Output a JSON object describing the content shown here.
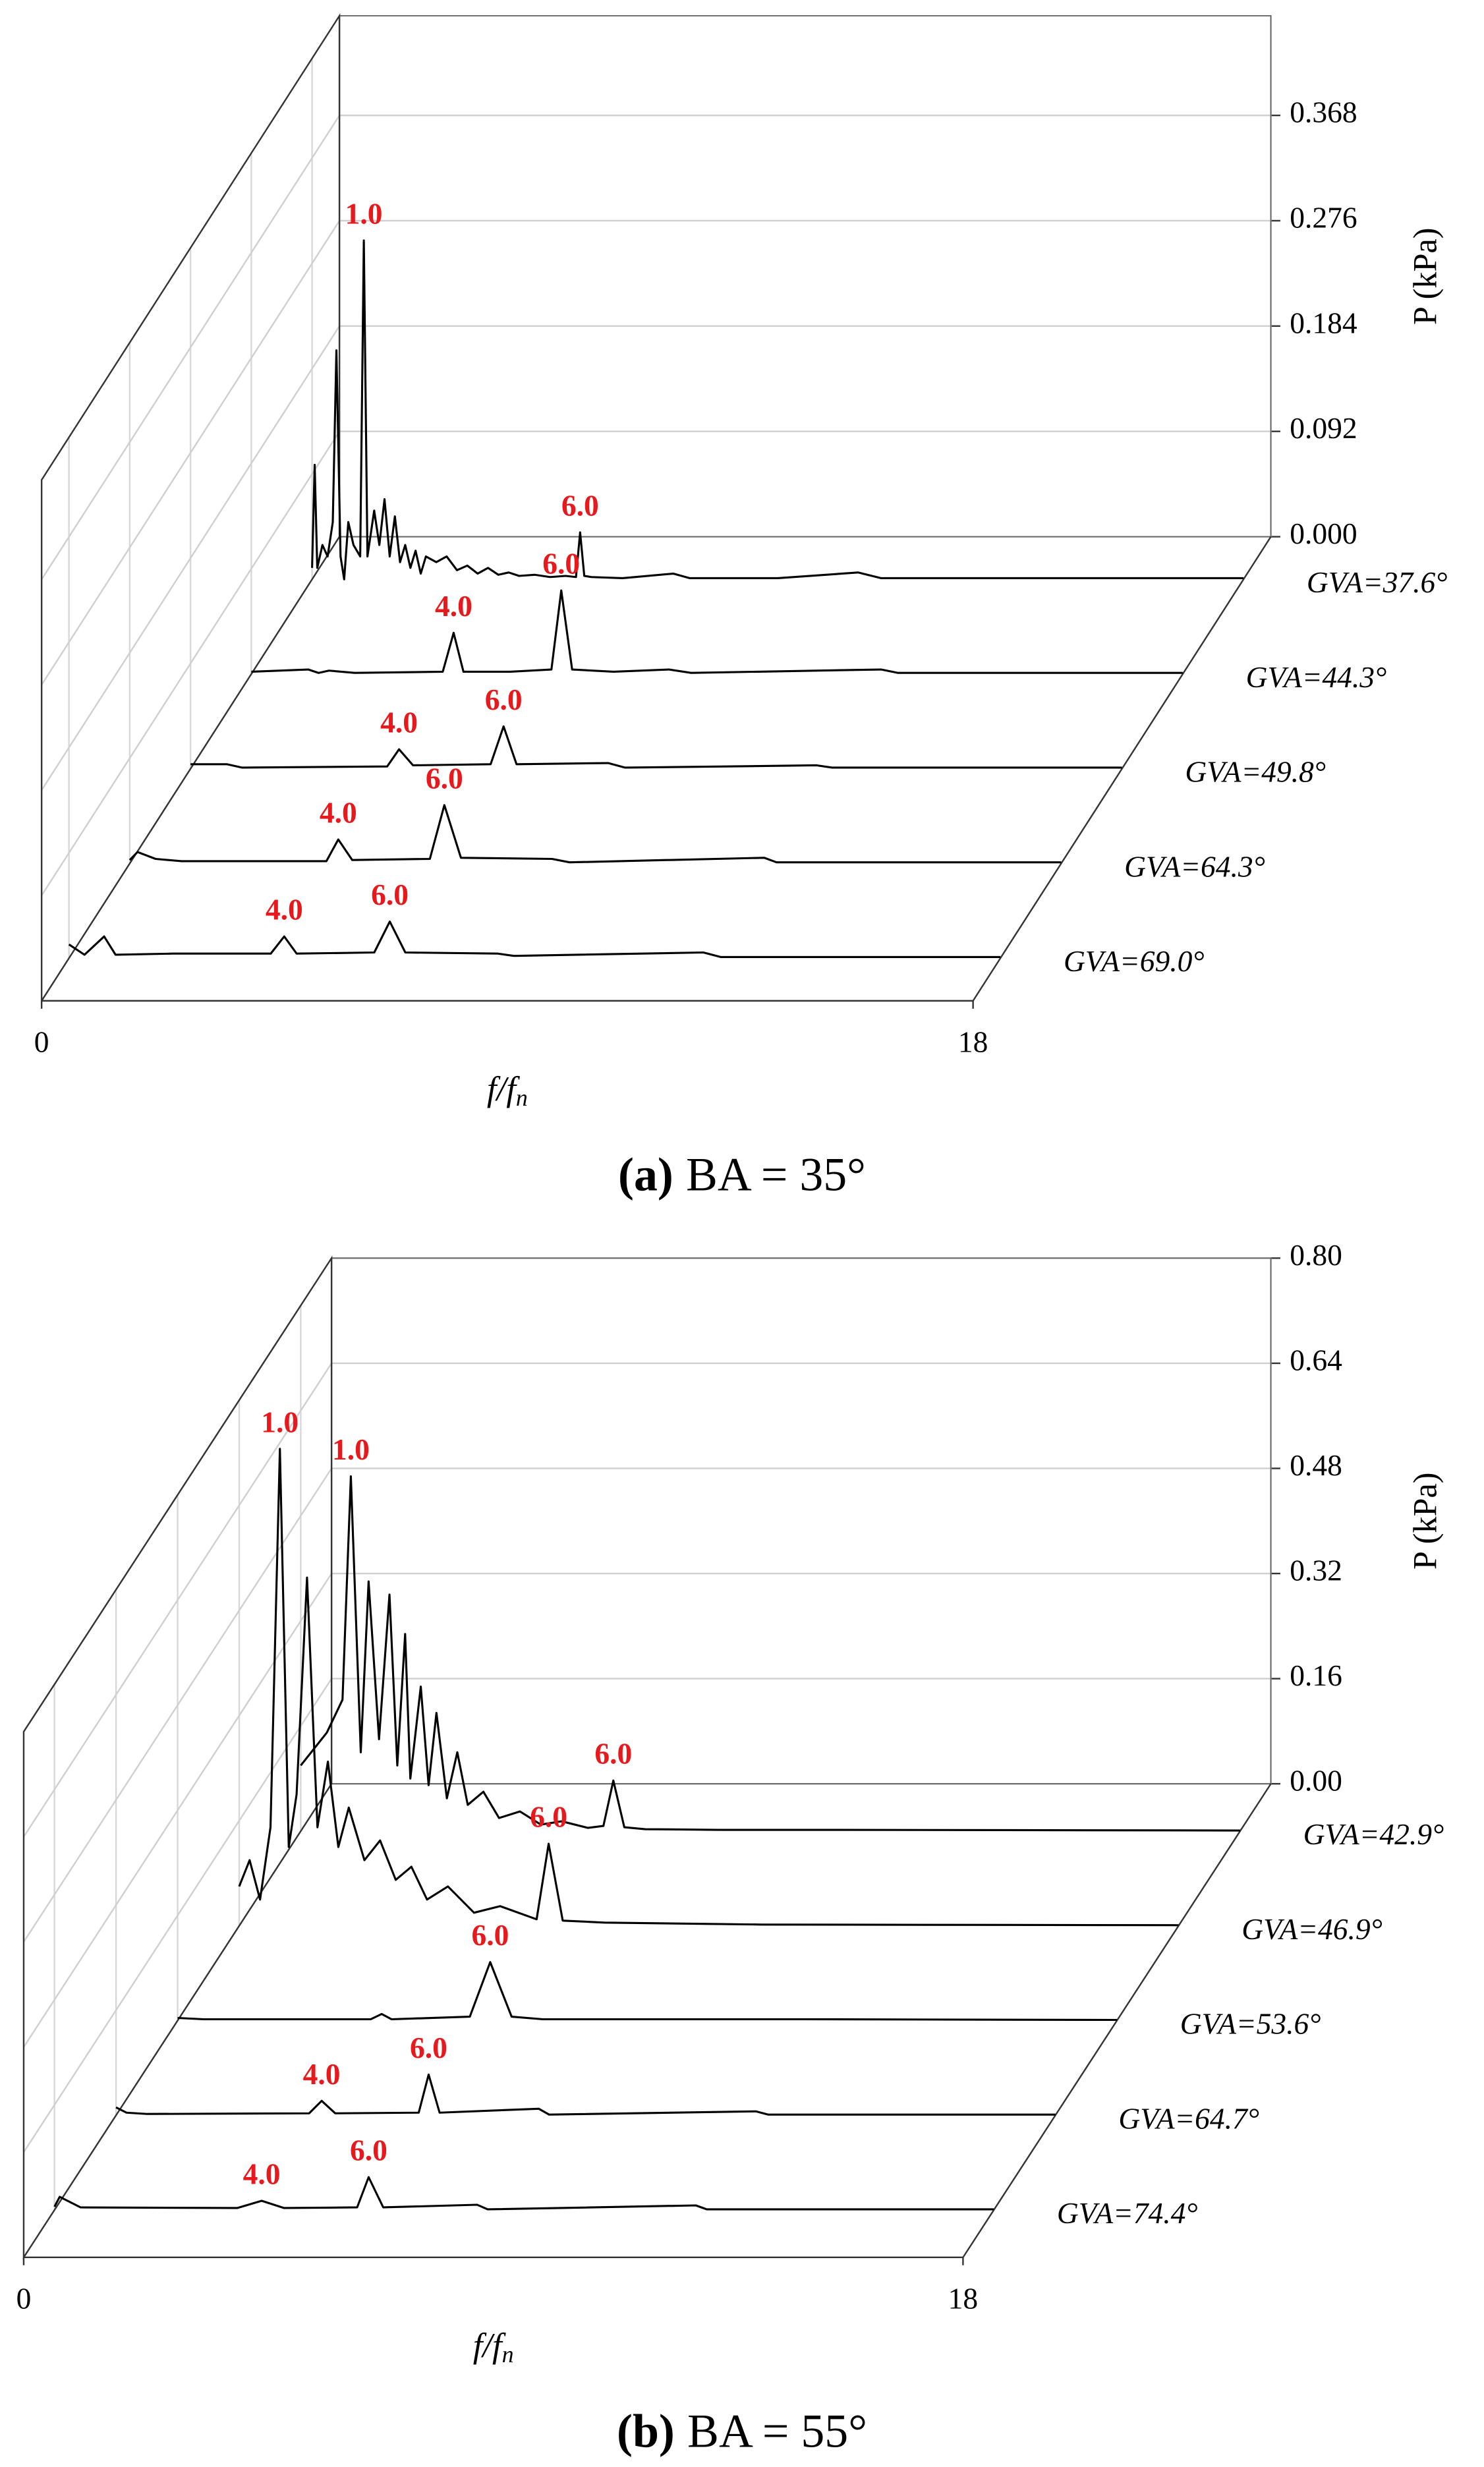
{
  "chart_data": [
    {
      "type": "waterfall",
      "panel": "(a)",
      "caption": "BA = 35°",
      "xlabel": "f/f",
      "xlabel_subscript": "n",
      "ylabel": "P (kPa)",
      "xlim": [
        0,
        18
      ],
      "xticks": [
        0,
        18
      ],
      "ylim": [
        0,
        0.455
      ],
      "yticks": [
        {
          "value": 0,
          "label": "0.000"
        },
        0.092,
        0.184,
        0.276,
        0.368
      ],
      "grid": true,
      "label_color": "#e8191c",
      "series": [
        {
          "name": "GVA=37.6°",
          "color": "#000000",
          "x": [
            0,
            0.05,
            0.1,
            0.2,
            0.3,
            0.4,
            0.47,
            0.55,
            0.62,
            0.7,
            0.8,
            0.93,
            1.0,
            1.07,
            1.2,
            1.3,
            1.4,
            1.5,
            1.6,
            1.7,
            1.8,
            1.9,
            2.0,
            2.1,
            2.2,
            2.4,
            2.6,
            2.8,
            3.0,
            3.2,
            3.4,
            3.6,
            3.8,
            4.0,
            4.3,
            4.6,
            4.9,
            5.1,
            5.18,
            5.26,
            5.4,
            6.0,
            6.98,
            7.3,
            9.0,
            10.55,
            11,
            18
          ],
          "values": [
            0.01,
            0.1,
            0.01,
            0.03,
            0.02,
            0.05,
            0.2,
            0.02,
            0.0,
            0.05,
            0.03,
            0.02,
            0.296,
            0.02,
            0.06,
            0.03,
            0.07,
            0.02,
            0.055,
            0.015,
            0.03,
            0.01,
            0.025,
            0.005,
            0.02,
            0.015,
            0.02,
            0.008,
            0.012,
            0.005,
            0.01,
            0.004,
            0.006,
            0.003,
            0.004,
            0.002,
            0.003,
            0.002,
            0.041,
            0.003,
            0.002,
            0.001,
            0.005,
            0.001,
            0.001,
            0.006,
            0.001,
            0.001
          ],
          "peak_labels": {
            "12": "1.0",
            "38": "6.0"
          }
        },
        {
          "name": "GVA=44.3°",
          "color": "#000000",
          "x": [
            0,
            1.1,
            1.3,
            1.5,
            2.0,
            3.7,
            3.91,
            4.1,
            5.0,
            5.8,
            5.99,
            6.2,
            7.0,
            8.07,
            8.5,
            12.17,
            12.5,
            18
          ],
          "values": [
            0.002,
            0.004,
            0.001,
            0.003,
            0.001,
            0.002,
            0.036,
            0.002,
            0.002,
            0.004,
            0.073,
            0.004,
            0.002,
            0.004,
            0.001,
            0.004,
            0.001,
            0.001
          ],
          "peak_labels": {
            "6": "4.0",
            "10": "6.0"
          }
        },
        {
          "name": "GVA=49.8°",
          "color": "#000000",
          "x": [
            0,
            0.7,
            1.0,
            3.8,
            4.03,
            4.3,
            5.8,
            6.05,
            6.3,
            8.07,
            8.4,
            12.1,
            12.4,
            18
          ],
          "values": [
            0.004,
            0.004,
            0.001,
            0.002,
            0.017,
            0.003,
            0.004,
            0.037,
            0.004,
            0.005,
            0.001,
            0.003,
            0.001,
            0.001
          ],
          "peak_labels": {
            "4": "4.0",
            "7": "6.0"
          }
        },
        {
          "name": "GVA=64.3°",
          "color": "#000000",
          "x": [
            0,
            0.15,
            0.5,
            1.0,
            3.8,
            4.03,
            4.3,
            5.8,
            6.08,
            6.4,
            8.16,
            8.5,
            12.26,
            12.5,
            18
          ],
          "values": [
            0.003,
            0.01,
            0.004,
            0.002,
            0.002,
            0.021,
            0.003,
            0.004,
            0.051,
            0.005,
            0.004,
            0.001,
            0.005,
            0.001,
            0.001
          ],
          "peak_labels": {
            "5": "4.0",
            "8": "6.0"
          }
        },
        {
          "name": "GVA=69.0°",
          "color": "#000000",
          "x": [
            0,
            0.3,
            0.68,
            0.9,
            2.0,
            3.9,
            4.16,
            4.4,
            5.9,
            6.2,
            6.5,
            8.29,
            8.6,
            12.26,
            12.6,
            18
          ],
          "values": [
            0.012,
            0.003,
            0.019,
            0.003,
            0.004,
            0.004,
            0.019,
            0.004,
            0.005,
            0.032,
            0.005,
            0.004,
            0.002,
            0.005,
            0.001,
            0.001
          ],
          "peak_labels": {
            "6": "4.0",
            "9": "6.0"
          }
        }
      ]
    },
    {
      "type": "waterfall",
      "panel": "(b)",
      "caption": "BA = 55°",
      "xlabel": "f/f",
      "xlabel_subscript": "n",
      "ylabel": "P (kPa)",
      "xlim": [
        0,
        18
      ],
      "xticks": [
        0,
        18
      ],
      "ylim": [
        0,
        0.8
      ],
      "yticks": [
        {
          "value": 0,
          "label": "0.00"
        },
        0.16,
        0.32,
        0.48,
        0.64,
        {
          "value": 0.8,
          "label": "0.80"
        }
      ],
      "grid": true,
      "label_color": "#e8191c",
      "series": [
        {
          "name": "GVA=42.9°",
          "color": "#000000",
          "x": [
            0,
            0.5,
            0.8,
            0.96,
            1.15,
            1.3,
            1.5,
            1.7,
            1.85,
            2.0,
            2.1,
            2.3,
            2.45,
            2.6,
            2.8,
            3.0,
            3.2,
            3.5,
            3.8,
            4.2,
            4.6,
            5.0,
            5.5,
            5.8,
            5.99,
            6.2,
            6.6,
            8.0,
            10,
            18
          ],
          "values": [
            0.1,
            0.15,
            0.2,
            0.54,
            0.12,
            0.38,
            0.14,
            0.36,
            0.1,
            0.3,
            0.08,
            0.22,
            0.07,
            0.18,
            0.05,
            0.12,
            0.04,
            0.06,
            0.02,
            0.03,
            0.01,
            0.015,
            0.005,
            0.008,
            0.077,
            0.006,
            0.003,
            0.002,
            0.002,
            0.001
          ],
          "peak_labels": {
            "3": "1.0",
            "24": "6.0"
          }
        },
        {
          "name": "GVA=46.9°",
          "color": "#000000",
          "x": [
            0,
            0.2,
            0.4,
            0.6,
            0.78,
            0.95,
            1.1,
            1.3,
            1.5,
            1.7,
            1.9,
            2.1,
            2.4,
            2.7,
            3.0,
            3.3,
            3.6,
            4.0,
            4.5,
            5.0,
            5.7,
            5.93,
            6.2,
            7.0,
            8.0,
            10,
            18
          ],
          "values": [
            0.06,
            0.1,
            0.04,
            0.15,
            0.726,
            0.12,
            0.2,
            0.53,
            0.15,
            0.25,
            0.12,
            0.18,
            0.1,
            0.13,
            0.07,
            0.09,
            0.04,
            0.06,
            0.02,
            0.03,
            0.01,
            0.125,
            0.008,
            0.005,
            0.004,
            0.002,
            0.001
          ],
          "peak_labels": {
            "4": "1.0",
            "21": "6.0"
          }
        },
        {
          "name": "GVA=53.6°",
          "color": "#000000",
          "x": [
            0,
            0.5,
            3.7,
            3.91,
            4.1,
            5.6,
            5.99,
            6.4,
            7.0,
            12,
            18
          ],
          "values": [
            0.004,
            0.002,
            0.002,
            0.01,
            0.002,
            0.006,
            0.089,
            0.006,
            0.002,
            0.002,
            0.001
          ],
          "peak_labels": {
            "6": "6.0"
          }
        },
        {
          "name": "GVA=64.7°",
          "color": "#000000",
          "x": [
            0,
            0.2,
            0.6,
            3.7,
            3.94,
            4.2,
            5.8,
            5.99,
            6.2,
            8.1,
            8.3,
            12.26,
            12.5,
            18
          ],
          "values": [
            0.012,
            0.004,
            0.002,
            0.003,
            0.022,
            0.003,
            0.004,
            0.062,
            0.004,
            0.01,
            0.001,
            0.006,
            0.001,
            0.001
          ],
          "peak_labels": {
            "4": "4.0",
            "7": "6.0"
          }
        },
        {
          "name": "GVA=74.4°",
          "color": "#000000",
          "x": [
            0,
            0.1,
            0.5,
            3.5,
            3.97,
            4.4,
            5.8,
            6.02,
            6.3,
            8.1,
            8.3,
            12.29,
            12.5,
            18
          ],
          "values": [
            0.005,
            0.02,
            0.004,
            0.003,
            0.014,
            0.003,
            0.004,
            0.05,
            0.004,
            0.008,
            0.001,
            0.007,
            0.001,
            0.001
          ],
          "peak_labels": {
            "4": "4.0",
            "7": "6.0"
          }
        }
      ]
    }
  ]
}
